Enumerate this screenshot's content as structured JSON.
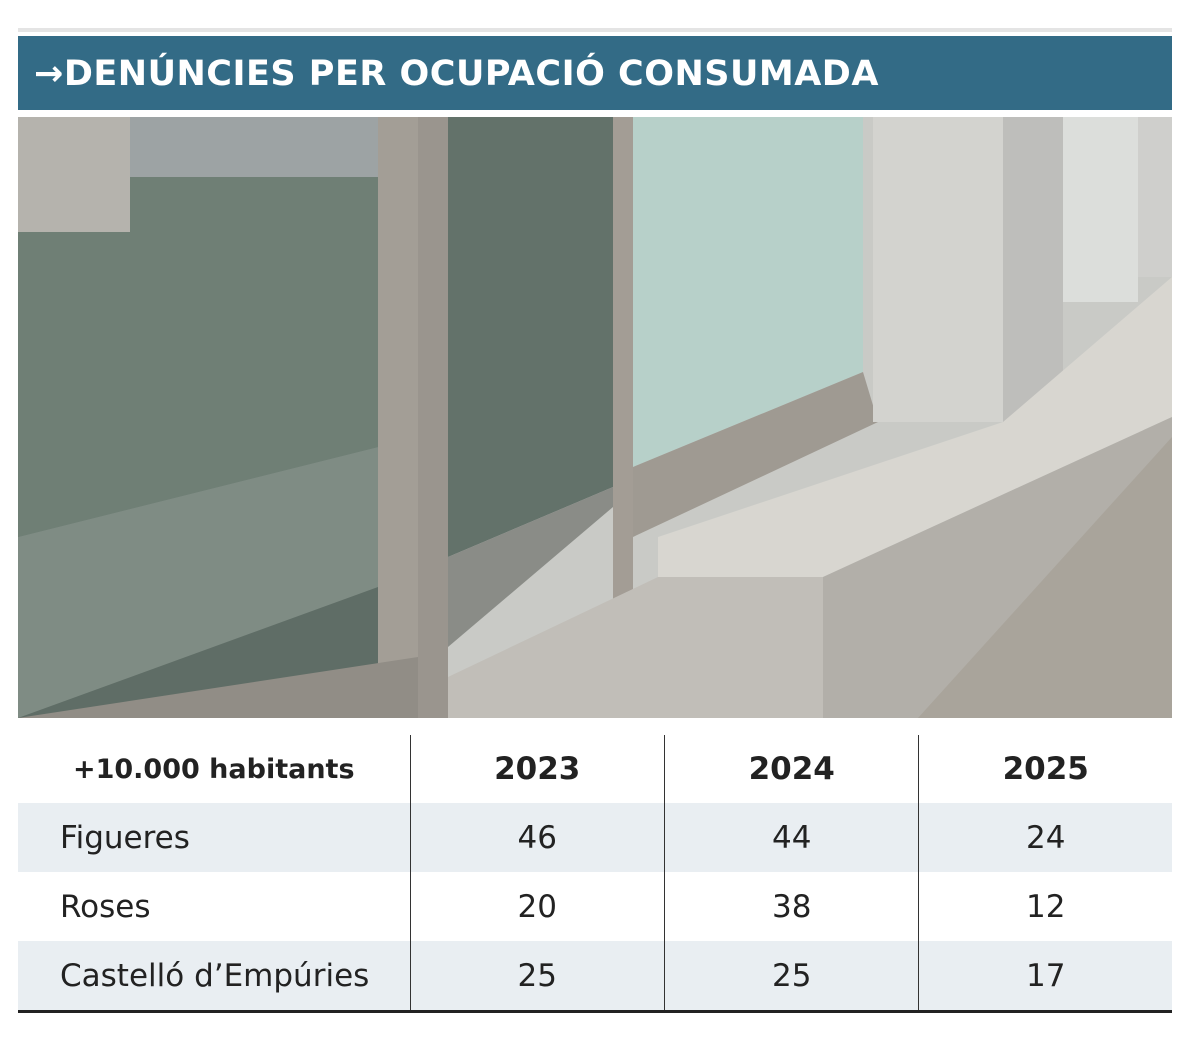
{
  "header": {
    "title": "→DENÚNCIES PER OCUPACIÓ CONSUMADA"
  },
  "table": {
    "columns": [
      "+10.000 habitants",
      "2023",
      "2024",
      "2025"
    ],
    "rows": [
      [
        "Figueres",
        46,
        44,
        24
      ],
      [
        "Roses",
        20,
        38,
        12
      ],
      [
        "Castelló d’Empúries",
        25,
        25,
        17
      ]
    ]
  }
}
